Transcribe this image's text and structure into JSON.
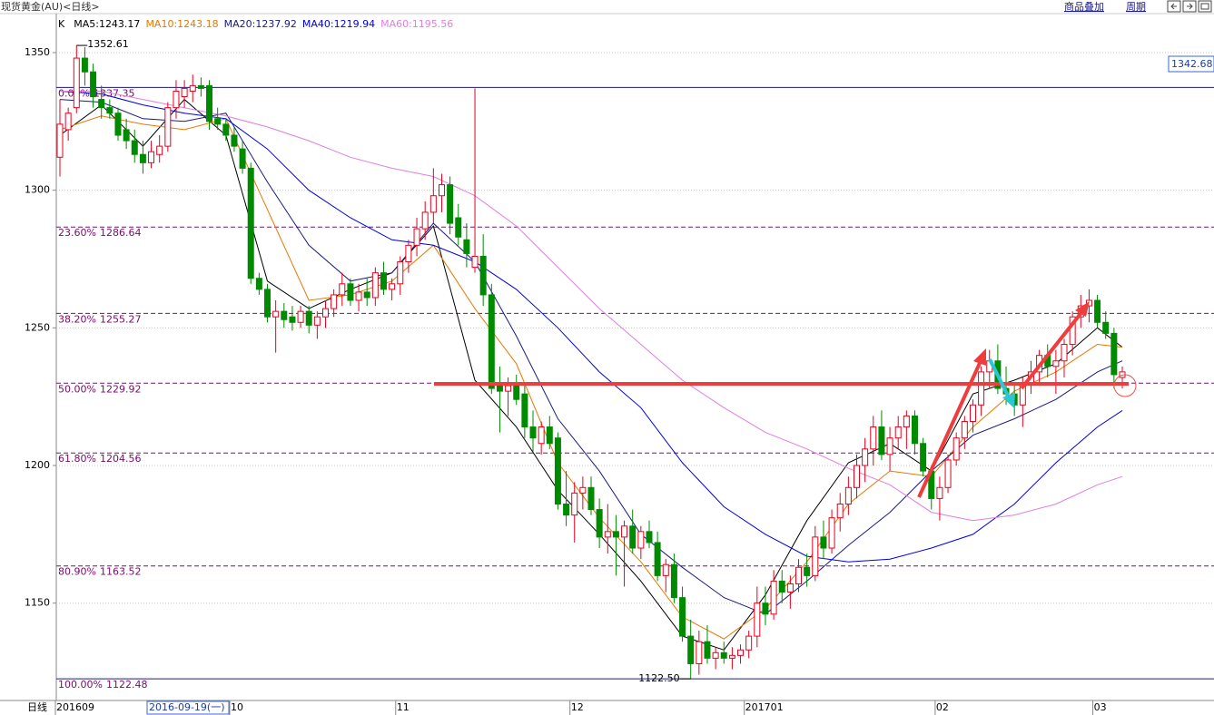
{
  "header": {
    "title": "现货黄金(AU)<日线>",
    "overlay_button": "商品叠加",
    "period_button": "周期",
    "bottom_label": "日线",
    "cursor_date": "2016-09-19(一)",
    "cursor_price": 1342.68
  },
  "chart_data": {
    "type": "candlestick",
    "series_label": "K",
    "ylim": [
      1114.63,
      1364.17
    ],
    "yticks": [
      1150,
      1200,
      1250,
      1300,
      1350
    ],
    "grid": true,
    "up_color": "#e8001c",
    "down_color": "#008a00",
    "categories": [
      "201609",
      null,
      null,
      null,
      null,
      null,
      null,
      null,
      null,
      null,
      null,
      null,
      null,
      null,
      null,
      null,
      null,
      null,
      null,
      null,
      null,
      "10",
      null,
      null,
      null,
      null,
      null,
      null,
      null,
      null,
      null,
      null,
      null,
      null,
      null,
      null,
      null,
      null,
      null,
      null,
      null,
      "11",
      null,
      null,
      null,
      null,
      null,
      null,
      null,
      null,
      null,
      null,
      null,
      null,
      null,
      null,
      null,
      null,
      null,
      null,
      null,
      null,
      "12",
      null,
      null,
      null,
      null,
      null,
      null,
      null,
      null,
      null,
      null,
      null,
      null,
      null,
      null,
      null,
      null,
      null,
      null,
      null,
      null,
      "201701",
      null,
      null,
      null,
      null,
      null,
      null,
      null,
      null,
      null,
      null,
      null,
      null,
      null,
      null,
      null,
      null,
      null,
      null,
      null,
      null,
      null,
      null,
      "02",
      null,
      null,
      null,
      null,
      null,
      null,
      null,
      null,
      null,
      null,
      null,
      null,
      null,
      null,
      null,
      null,
      null,
      null,
      "03",
      null,
      null,
      null
    ],
    "ohlc": [
      [
        1312,
        1333,
        1305,
        1324
      ],
      [
        1322,
        1330,
        1318,
        1328
      ],
      [
        1330,
        1352.61,
        1328,
        1348
      ],
      [
        1348,
        1352,
        1338,
        1343
      ],
      [
        1343,
        1346,
        1330,
        1334
      ],
      [
        1333,
        1338,
        1326,
        1330
      ],
      [
        1330,
        1333,
        1326,
        1328
      ],
      [
        1328,
        1330,
        1318,
        1320
      ],
      [
        1322,
        1326,
        1315,
        1318
      ],
      [
        1318,
        1322,
        1310,
        1313
      ],
      [
        1313,
        1318,
        1306,
        1310
      ],
      [
        1310,
        1318,
        1308,
        1314
      ],
      [
        1313,
        1320,
        1310,
        1316
      ],
      [
        1316,
        1332,
        1314,
        1330
      ],
      [
        1330,
        1340,
        1326,
        1336
      ],
      [
        1334,
        1340,
        1330,
        1337
      ],
      [
        1336,
        1342,
        1332,
        1338
      ],
      [
        1338,
        1341,
        1334,
        1337
      ],
      [
        1338,
        1340,
        1322,
        1325
      ],
      [
        1326,
        1330,
        1322,
        1324
      ],
      [
        1324,
        1326,
        1318,
        1320
      ],
      [
        1320,
        1323,
        1314,
        1316
      ],
      [
        1315,
        1318,
        1306,
        1308
      ],
      [
        1308,
        1310,
        1266,
        1268
      ],
      [
        1268,
        1270,
        1262,
        1264
      ],
      [
        1264,
        1266,
        1252,
        1254
      ],
      [
        1254,
        1260,
        1241,
        1256
      ],
      [
        1256,
        1259,
        1250,
        1253
      ],
      [
        1254,
        1258,
        1249,
        1252
      ],
      [
        1252,
        1258,
        1250,
        1256
      ],
      [
        1256,
        1258,
        1248,
        1251
      ],
      [
        1251,
        1256,
        1246,
        1254
      ],
      [
        1254,
        1260,
        1250,
        1257
      ],
      [
        1257,
        1264,
        1254,
        1262
      ],
      [
        1262,
        1270,
        1258,
        1266
      ],
      [
        1266,
        1268,
        1258,
        1260
      ],
      [
        1260,
        1266,
        1256,
        1263
      ],
      [
        1263,
        1268,
        1258,
        1261
      ],
      [
        1261,
        1272,
        1258,
        1270
      ],
      [
        1270,
        1274,
        1262,
        1264
      ],
      [
        1264,
        1268,
        1260,
        1266
      ],
      [
        1266,
        1276,
        1262,
        1274
      ],
      [
        1274,
        1282,
        1270,
        1280
      ],
      [
        1280,
        1290,
        1276,
        1286
      ],
      [
        1286,
        1296,
        1282,
        1292
      ],
      [
        1292,
        1308,
        1288,
        1298
      ],
      [
        1298,
        1306,
        1292,
        1302
      ],
      [
        1302,
        1305,
        1284,
        1288
      ],
      [
        1290,
        1295,
        1280,
        1283
      ],
      [
        1282,
        1288,
        1272,
        1277
      ],
      [
        1272,
        1337,
        1270,
        1276
      ],
      [
        1276,
        1284,
        1258,
        1262
      ],
      [
        1262,
        1266,
        1226,
        1228
      ],
      [
        1230,
        1236,
        1212,
        1227
      ],
      [
        1227,
        1232,
        1218,
        1229
      ],
      [
        1229,
        1233,
        1222,
        1224
      ],
      [
        1226,
        1230,
        1210,
        1214
      ],
      [
        1214,
        1220,
        1205,
        1210
      ],
      [
        1208,
        1216,
        1204,
        1214
      ],
      [
        1214,
        1218,
        1206,
        1208
      ],
      [
        1210,
        1212,
        1184,
        1186
      ],
      [
        1186,
        1198,
        1178,
        1182
      ],
      [
        1182,
        1194,
        1172,
        1190
      ],
      [
        1190,
        1196,
        1184,
        1192
      ],
      [
        1192,
        1196,
        1182,
        1184
      ],
      [
        1184,
        1188,
        1170,
        1174
      ],
      [
        1174,
        1186,
        1168,
        1176
      ],
      [
        1176,
        1182,
        1160,
        1174
      ],
      [
        1174,
        1180,
        1156,
        1178
      ],
      [
        1178,
        1184,
        1168,
        1170
      ],
      [
        1170,
        1178,
        1166,
        1176
      ],
      [
        1176,
        1180,
        1170,
        1172
      ],
      [
        1172,
        1176,
        1158,
        1160
      ],
      [
        1160,
        1166,
        1154,
        1164
      ],
      [
        1164,
        1168,
        1150,
        1152
      ],
      [
        1152,
        1156,
        1136,
        1138
      ],
      [
        1138,
        1144,
        1122.5,
        1128
      ],
      [
        1128,
        1140,
        1124,
        1136
      ],
      [
        1136,
        1142,
        1128,
        1130
      ],
      [
        1130,
        1134,
        1126,
        1132
      ],
      [
        1132,
        1136,
        1128,
        1130
      ],
      [
        1130,
        1134,
        1126,
        1131
      ],
      [
        1131,
        1135,
        1128,
        1133
      ],
      [
        1133,
        1140,
        1130,
        1138
      ],
      [
        1138,
        1156,
        1134,
        1150
      ],
      [
        1150,
        1156,
        1142,
        1146
      ],
      [
        1146,
        1162,
        1144,
        1158
      ],
      [
        1158,
        1162,
        1150,
        1154
      ],
      [
        1154,
        1160,
        1148,
        1157
      ],
      [
        1157,
        1166,
        1154,
        1163
      ],
      [
        1163,
        1168,
        1156,
        1160
      ],
      [
        1160,
        1178,
        1158,
        1174
      ],
      [
        1174,
        1180,
        1166,
        1170
      ],
      [
        1170,
        1184,
        1168,
        1181
      ],
      [
        1181,
        1190,
        1176,
        1186
      ],
      [
        1186,
        1196,
        1182,
        1192
      ],
      [
        1192,
        1204,
        1188,
        1200
      ],
      [
        1200,
        1210,
        1194,
        1206
      ],
      [
        1206,
        1218,
        1200,
        1214
      ],
      [
        1214,
        1220,
        1202,
        1204
      ],
      [
        1204,
        1214,
        1198,
        1210
      ],
      [
        1210,
        1218,
        1206,
        1214
      ],
      [
        1214,
        1220,
        1206,
        1218
      ],
      [
        1218,
        1220,
        1204,
        1208
      ],
      [
        1208,
        1210,
        1196,
        1198
      ],
      [
        1198,
        1200,
        1184,
        1188
      ],
      [
        1188,
        1196,
        1180,
        1192
      ],
      [
        1192,
        1204,
        1190,
        1202
      ],
      [
        1202,
        1212,
        1200,
        1210
      ],
      [
        1210,
        1218,
        1206,
        1216
      ],
      [
        1216,
        1224,
        1212,
        1222
      ],
      [
        1222,
        1236,
        1218,
        1234
      ],
      [
        1234,
        1242,
        1228,
        1238
      ],
      [
        1238,
        1244,
        1226,
        1228
      ],
      [
        1228,
        1236,
        1222,
        1226
      ],
      [
        1226,
        1230,
        1218,
        1222
      ],
      [
        1222,
        1232,
        1214,
        1230
      ],
      [
        1230,
        1238,
        1226,
        1234
      ],
      [
        1234,
        1242,
        1230,
        1240
      ],
      [
        1240,
        1244,
        1232,
        1236
      ],
      [
        1236,
        1242,
        1226,
        1238
      ],
      [
        1238,
        1246,
        1232,
        1244
      ],
      [
        1244,
        1256,
        1240,
        1254
      ],
      [
        1254,
        1262,
        1250,
        1258
      ],
      [
        1258,
        1264,
        1252,
        1260
      ],
      [
        1260,
        1262,
        1250,
        1252
      ],
      [
        1252,
        1256,
        1246,
        1248
      ],
      [
        1248,
        1250,
        1228,
        1233
      ],
      [
        1232,
        1236,
        1228,
        1234
      ]
    ],
    "x": [
      0,
      5,
      10,
      15,
      20,
      25,
      30,
      35,
      40,
      45,
      50,
      55,
      60,
      65,
      70,
      75,
      80,
      85,
      90,
      95,
      100,
      105,
      110,
      115,
      120,
      125,
      128
    ],
    "series": [
      {
        "name": "MA5:1243.17",
        "color": "#000000",
        "values": [
          1320,
          1331,
          1316,
          1333,
          1320,
          1267,
          1257,
          1264,
          1270,
          1287,
          1231,
          1214,
          1191,
          1175,
          1158,
          1138,
          1133,
          1153,
          1180,
          1201,
          1208,
          1198,
          1226,
          1231,
          1237,
          1250,
          1243
        ]
      },
      {
        "name": "MA10:1243.18",
        "color": "#e87800",
        "values": [
          1322,
          1327,
          1324,
          1322,
          1326,
          1293,
          1260,
          1262,
          1267,
          1280,
          1257,
          1237,
          1201,
          1181,
          1165,
          1145,
          1137,
          1148,
          1165,
          1186,
          1198,
          1196,
          1214,
          1227,
          1234,
          1244,
          1243
        ]
      },
      {
        "name": "MA20:1237.92",
        "color": "#1a1a80",
        "values": [
          1333,
          1332,
          1326,
          1325,
          1328,
          1303,
          1280,
          1267,
          1270,
          1288,
          1274,
          1247,
          1217,
          1198,
          1175,
          1163,
          1152,
          1146,
          1158,
          1171,
          1183,
          1198,
          1211,
          1217,
          1224,
          1234,
          1238
        ]
      },
      {
        "name": "MA40:1219.94",
        "color": "#0000e0",
        "values": [
          1336,
          1335,
          1331,
          1328,
          1326,
          1315,
          1300,
          1290,
          1282,
          1280,
          1274,
          1264,
          1250,
          1234,
          1221,
          1201,
          1185,
          1175,
          1167,
          1165,
          1166,
          1170,
          1175,
          1186,
          1201,
          1214,
          1220
        ]
      },
      {
        "name": "MA60:1195.56",
        "color": "#e07ee0",
        "values": [
          1336,
          1336,
          1333,
          1330,
          1327,
          1323,
          1318,
          1312,
          1308,
          1305,
          1298,
          1287,
          1272,
          1257,
          1244,
          1231,
          1221,
          1212,
          1206,
          1199,
          1193,
          1183,
          1180,
          1182,
          1186,
          1193,
          1196
        ]
      }
    ],
    "fib_levels": [
      {
        "ratio": "0.00%",
        "value": 1337.35
      },
      {
        "ratio": "23.60%",
        "value": 1286.64
      },
      {
        "ratio": "38.20%",
        "value": 1255.27
      },
      {
        "ratio": "50.00%",
        "value": 1229.92
      },
      {
        "ratio": "61.80%",
        "value": 1204.56
      },
      {
        "ratio": "80.90%",
        "value": 1163.52
      },
      {
        "ratio": "100.00%",
        "value": 1122.48
      }
    ],
    "high_label": 1352.61,
    "low_label": {
      "value": 1122.5,
      "label": "1122.50"
    }
  }
}
